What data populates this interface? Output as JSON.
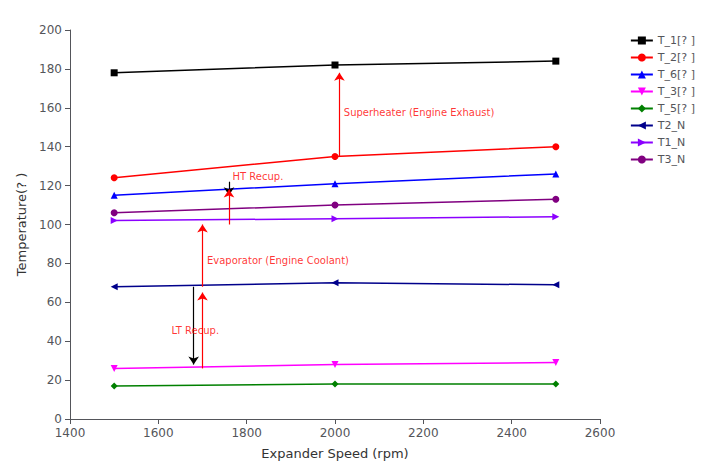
{
  "chart_data": {
    "type": "line",
    "x_label": "Expander Speed (rpm)",
    "y_label": "Temperature(? )",
    "x": [
      1500,
      2000,
      2500
    ],
    "series": [
      {
        "name": "T_1[? ]",
        "color": "black",
        "marker": "square",
        "values": [
          178,
          182,
          184
        ]
      },
      {
        "name": "T_2[? ]",
        "color": "red",
        "marker": "circle",
        "values": [
          124,
          135,
          140
        ]
      },
      {
        "name": "T_6[? ]",
        "color": "blue",
        "marker": "triangle-up",
        "values": [
          115,
          121,
          126
        ]
      },
      {
        "name": "T_3[? ]",
        "color": "magenta",
        "marker": "triangle-down",
        "values": [
          26,
          28,
          29
        ]
      },
      {
        "name": "T_5[? ]",
        "color": "green",
        "marker": "diamond",
        "values": [
          17,
          18,
          18
        ]
      },
      {
        "name": "T2_N",
        "color": "#00008B",
        "marker": "triangle-left",
        "values": [
          68,
          70,
          69
        ]
      },
      {
        "name": "T1_N",
        "color": "#8B00FF",
        "marker": "triangle-right",
        "values": [
          102,
          103,
          104
        ]
      },
      {
        "name": "T3_N",
        "color": "#800080",
        "marker": "circle",
        "values": [
          106,
          110,
          113
        ]
      }
    ],
    "annotations": [
      {
        "text": "Superheater (Engine Exhaust)",
        "x": 2020,
        "y": 155,
        "color": "red"
      },
      {
        "text": "HT Recup.",
        "x": 1768,
        "y": 122,
        "color": "red"
      },
      {
        "text": "Evaporator (Engine Coolant)",
        "x": 1710,
        "y": 79,
        "color": "red"
      },
      {
        "text": "LT Recup.",
        "x": 1630,
        "y": 43,
        "color": "red"
      }
    ],
    "arrows": [
      {
        "x": 2010,
        "from": 135,
        "to": 178,
        "color": "red"
      },
      {
        "x": 1760,
        "from": 122,
        "to": 115,
        "color": "black"
      },
      {
        "x": 1760,
        "from": 100,
        "to": 118,
        "color": "red"
      },
      {
        "x": 1700,
        "from": 68,
        "to": 100,
        "color": "red"
      },
      {
        "x": 1680,
        "from": 68,
        "to": 28,
        "color": "black"
      },
      {
        "x": 1700,
        "from": 26,
        "to": 65,
        "color": "red"
      }
    ],
    "xlim": [
      1400,
      2600
    ],
    "ylim": [
      0,
      200
    ],
    "xticks": [
      1400,
      1600,
      1800,
      2000,
      2200,
      2400,
      2600
    ],
    "yticks": [
      0,
      20,
      40,
      60,
      80,
      100,
      120,
      140,
      160,
      180,
      200
    ],
    "grid": false,
    "legend": "right"
  }
}
